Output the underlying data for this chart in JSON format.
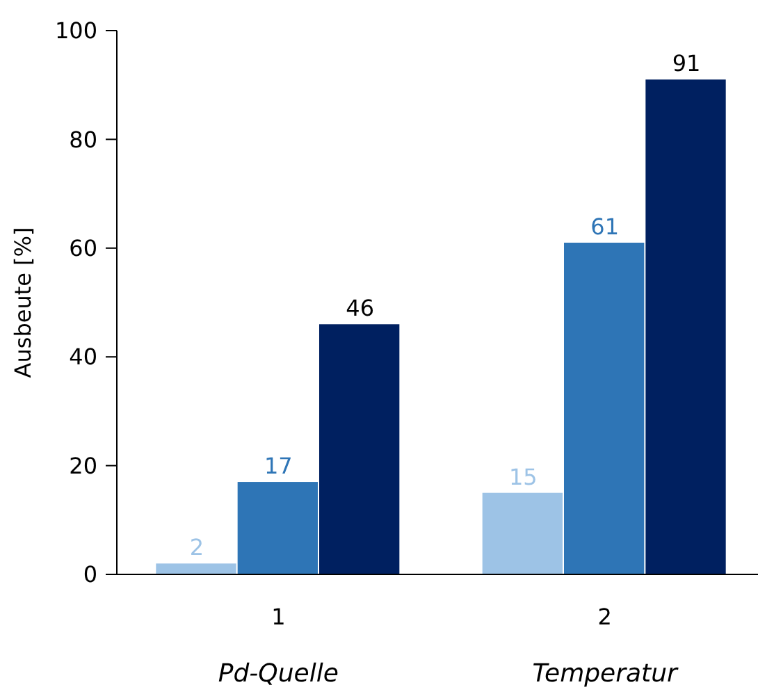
{
  "chart_data": {
    "type": "bar",
    "ylabel": "Ausbeute [%]",
    "categories": [
      "1",
      "2"
    ],
    "series": [
      {
        "color": "#9dc3e6",
        "values": [
          2,
          15
        ]
      },
      {
        "color": "#2e75b6",
        "values": [
          17,
          61
        ]
      },
      {
        "color": "#002060",
        "values": [
          46,
          91
        ]
      }
    ],
    "ylim": [
      0,
      100
    ],
    "yticks": [
      0,
      20,
      40,
      60,
      80,
      100
    ],
    "data_labels": true,
    "grid": false,
    "annotations": [
      "Pd-Quelle",
      "Temperatur"
    ]
  }
}
